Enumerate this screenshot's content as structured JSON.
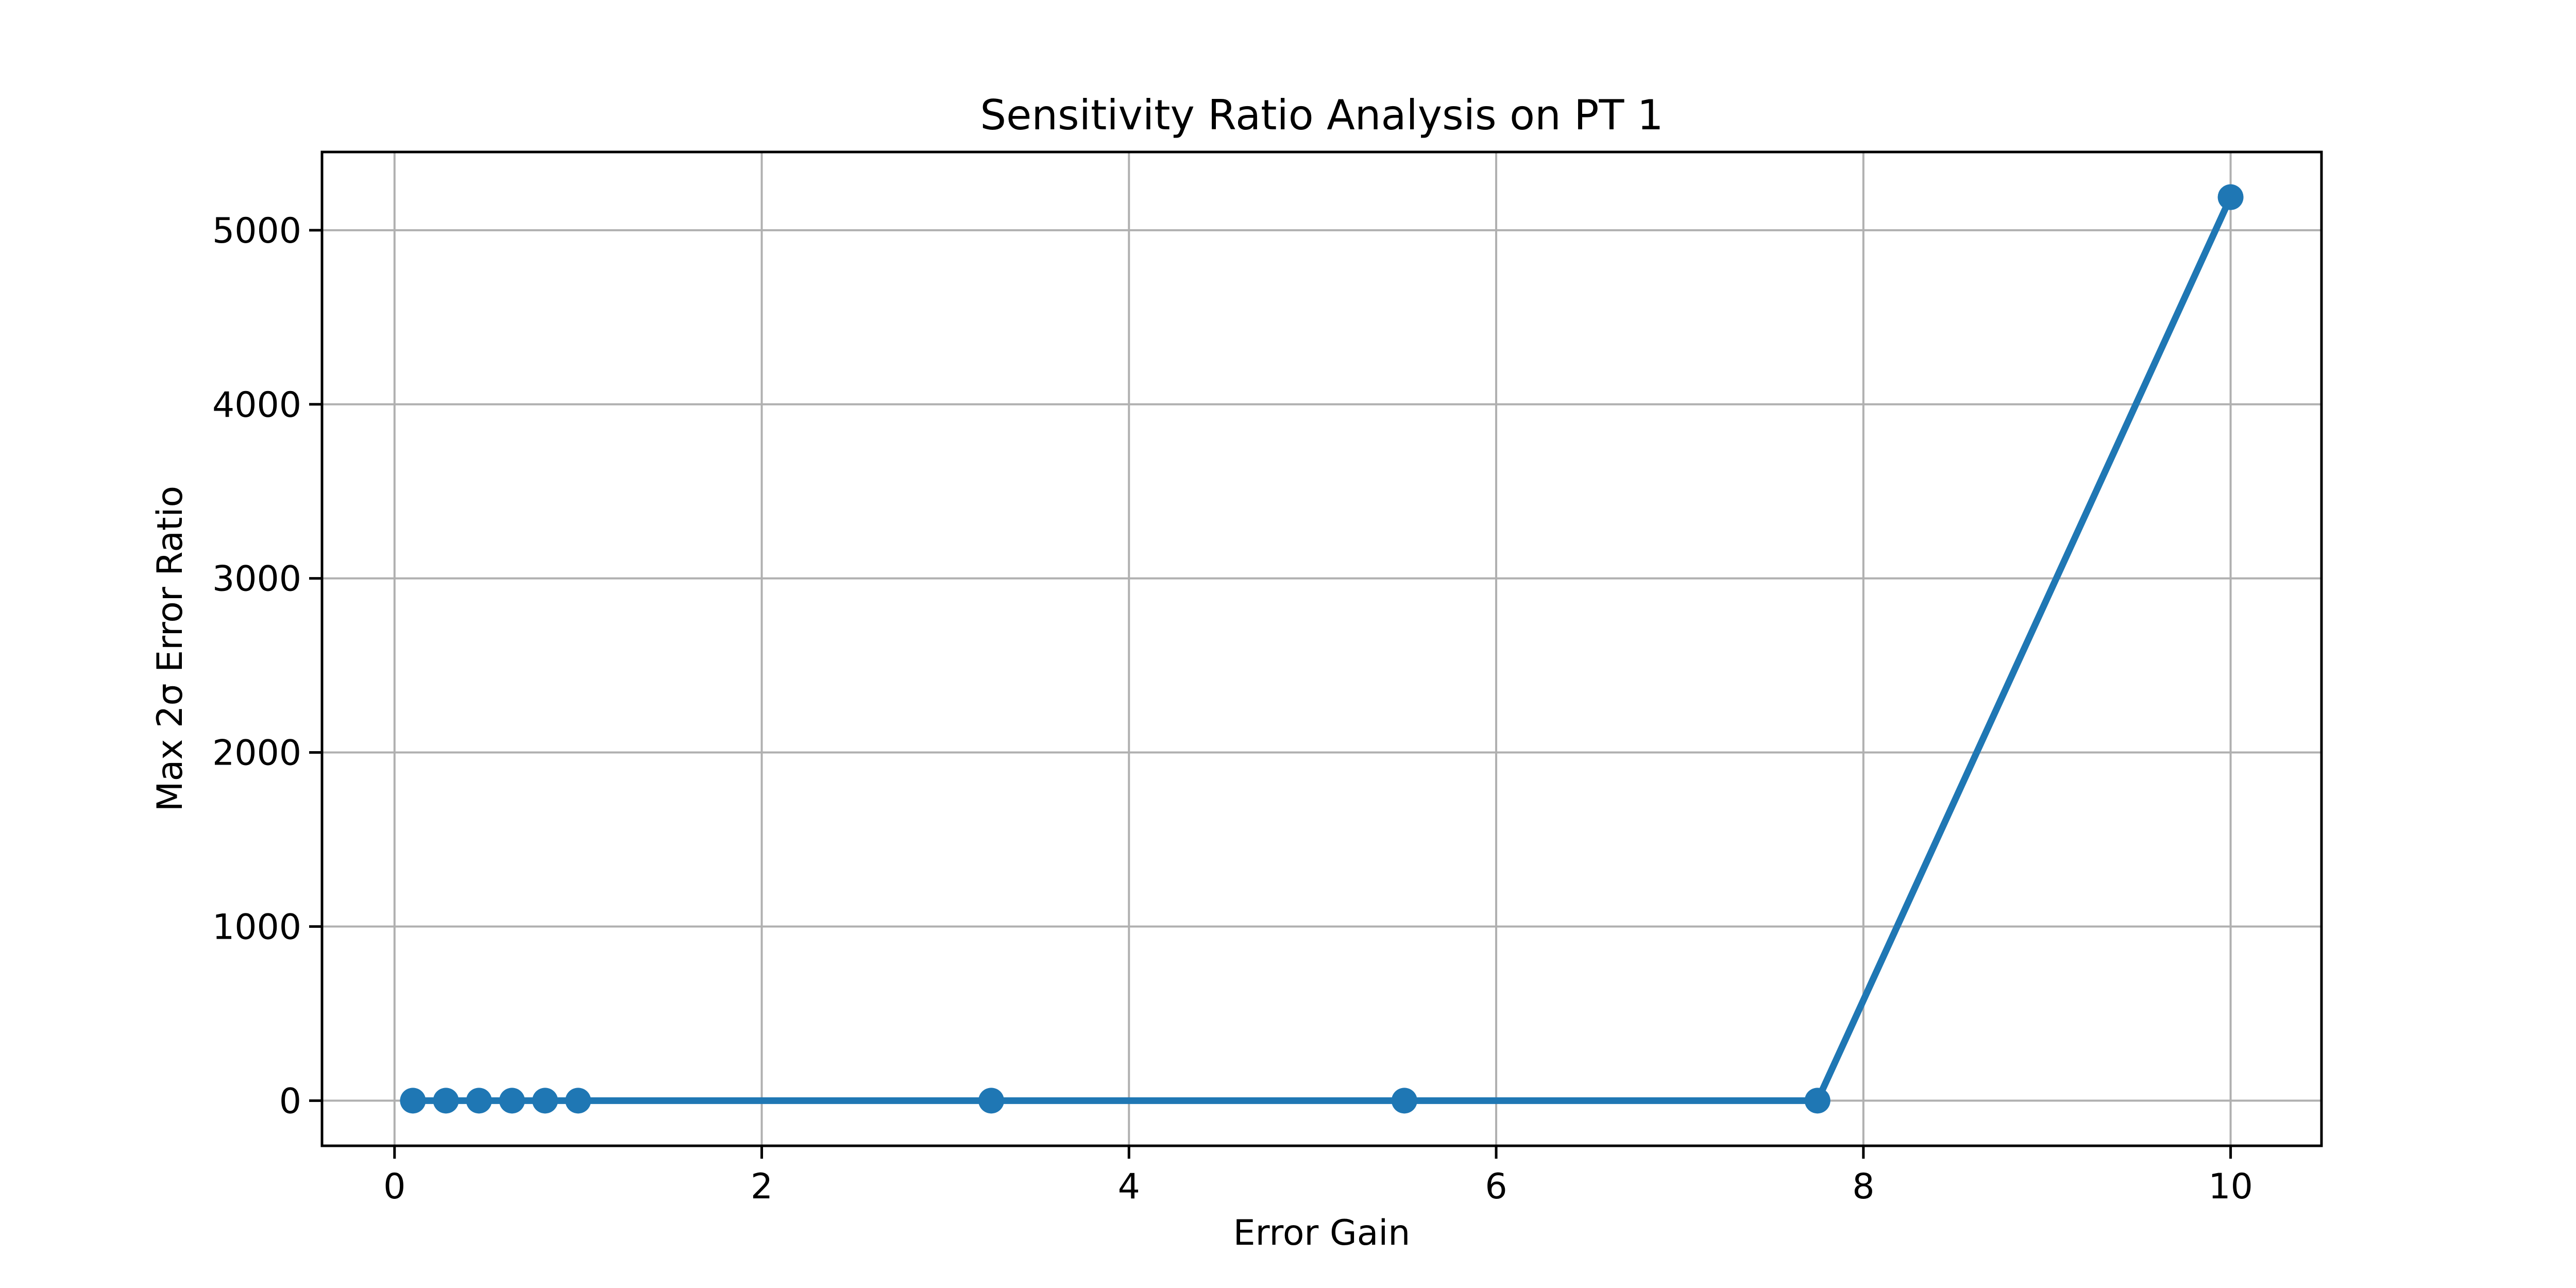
{
  "chart_data": {
    "type": "line",
    "title": "Sensitivity Ratio Analysis on PT 1",
    "xlabel": "Error Gain",
    "ylabel": "Max 2σ Error Ratio",
    "series": [
      {
        "name": "max 2σ error ratio",
        "x": [
          0.1,
          0.28,
          0.46,
          0.64,
          0.82,
          1.0,
          3.25,
          5.5,
          7.75,
          10.0
        ],
        "y": [
          0,
          0,
          0,
          0,
          0,
          0,
          0,
          0,
          0,
          5190
        ],
        "color": "#1f77b4",
        "marker": "circle"
      }
    ],
    "xlim": [
      -0.395,
      10.495
    ],
    "ylim": [
      -259.5,
      5449.5
    ],
    "xticks": {
      "values": [
        0,
        2,
        4,
        6,
        8,
        10
      ],
      "labels": [
        "0",
        "2",
        "4",
        "6",
        "8",
        "10"
      ]
    },
    "yticks": {
      "values": [
        0,
        1000,
        2000,
        3000,
        4000,
        5000
      ],
      "labels": [
        "0",
        "1000",
        "2000",
        "3000",
        "4000",
        "5000"
      ]
    },
    "grid": true,
    "grid_color": "#b0b0b0",
    "spine_color": "#000000",
    "tick_color": "#000000",
    "background": "#ffffff"
  }
}
